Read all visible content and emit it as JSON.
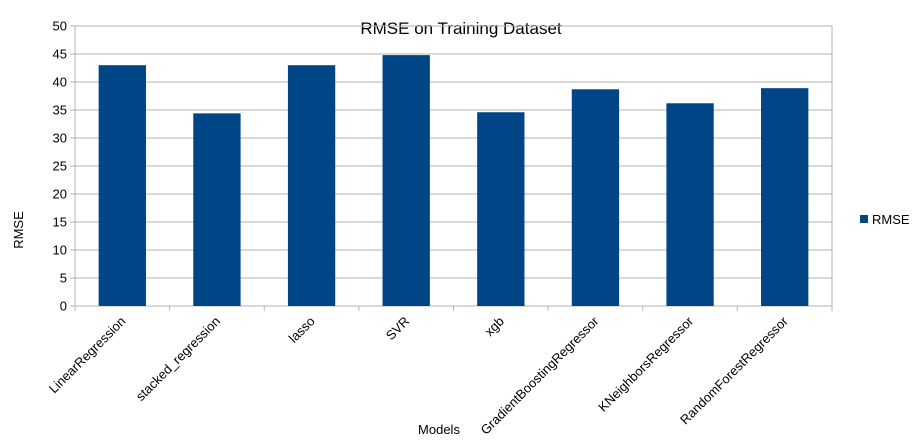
{
  "chart_data": {
    "type": "bar",
    "title": "RMSE on Training Dataset",
    "xlabel": "Models",
    "ylabel": "RMSE",
    "categories": [
      "LinearRegression",
      "stacked_regression",
      "lasso",
      "SVR",
      "xgb",
      "GradientBoostingRegressor",
      "KNeighborsRegressor",
      "RandomForestRegressor"
    ],
    "series": [
      {
        "name": "RMSE",
        "color": "#004586",
        "values": [
          43.0,
          34.4,
          43.0,
          44.8,
          34.6,
          38.7,
          36.2,
          38.9
        ]
      }
    ],
    "ylim": [
      0,
      50
    ],
    "yticks": [
      0,
      5,
      10,
      15,
      20,
      25,
      30,
      35,
      40,
      45,
      50
    ],
    "grid": true,
    "legend": "right"
  }
}
